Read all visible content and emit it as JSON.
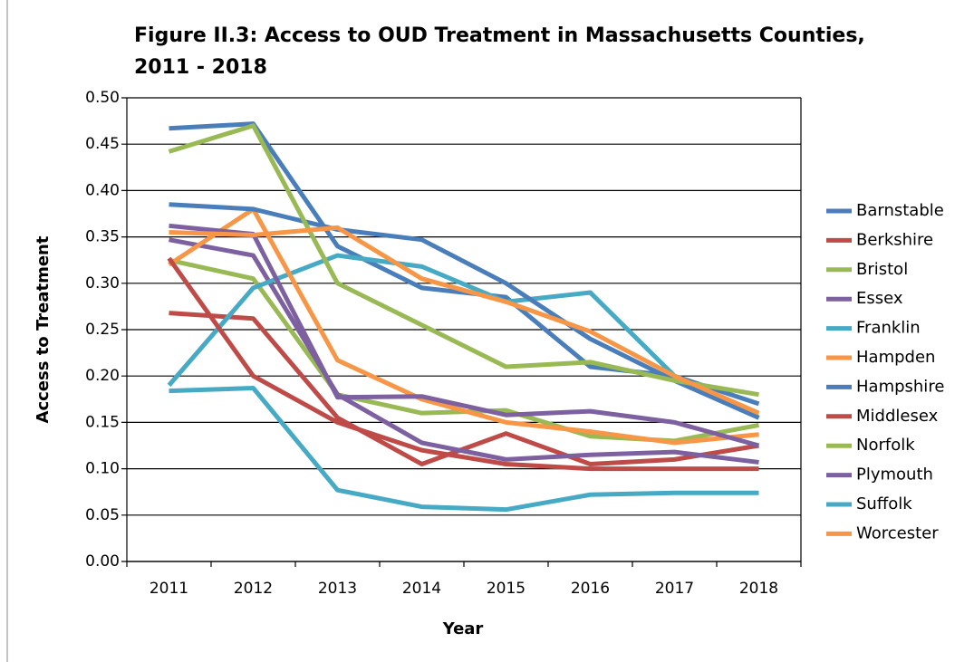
{
  "chart_data": {
    "type": "line",
    "title": [
      "Figure II.3: Access to OUD Treatment in Massachusetts Counties,",
      "2011 - 2018"
    ],
    "x_label": "Year",
    "y_label": "Access to Treatment",
    "categories": [
      "2011",
      "2012",
      "2013",
      "2014",
      "2015",
      "2016",
      "2017",
      "2018"
    ],
    "ylim": [
      0,
      0.5
    ],
    "yticks": [
      {
        "value": 0,
        "label": "0.00"
      },
      {
        "value": 0.05,
        "label": "0.05"
      },
      {
        "value": 0.1,
        "label": "0.10"
      },
      {
        "value": 0.15,
        "label": "0.15"
      },
      {
        "value": 0.2,
        "label": "0.20"
      },
      {
        "value": 0.25,
        "label": "0.25"
      },
      {
        "value": 0.3,
        "label": "0.30"
      },
      {
        "value": 0.35,
        "label": "0.35"
      },
      {
        "value": 0.4,
        "label": "0.40"
      },
      {
        "value": 0.45,
        "label": "0.45"
      },
      {
        "value": 0.5,
        "label": "0.50"
      }
    ],
    "grid": true,
    "legend": "right",
    "series": [
      {
        "name": "Barnstable",
        "color": "#4a7ebb",
        "values": [
          0.467,
          0.472,
          0.34,
          0.295,
          0.285,
          0.21,
          0.2,
          0.17
        ]
      },
      {
        "name": "Berkshire",
        "color": "#be4b48",
        "values": [
          0.268,
          0.262,
          0.155,
          0.105,
          0.138,
          0.105,
          0.11,
          0.125
        ]
      },
      {
        "name": "Bristol",
        "color": "#98b954",
        "values": [
          0.325,
          0.305,
          0.18,
          0.16,
          0.163,
          0.135,
          0.13,
          0.147
        ]
      },
      {
        "name": "Essex",
        "color": "#7d60a0",
        "values": [
          0.347,
          0.33,
          0.18,
          0.128,
          0.11,
          0.115,
          0.118,
          0.107
        ]
      },
      {
        "name": "Franklin",
        "color": "#46aac5",
        "values": [
          0.19,
          0.295,
          0.33,
          0.318,
          0.28,
          0.29,
          0.2,
          0.155
        ]
      },
      {
        "name": "Hampden",
        "color": "#f79646",
        "values": [
          0.32,
          0.38,
          0.217,
          0.175,
          0.15,
          0.14,
          0.128,
          0.137
        ]
      },
      {
        "name": "Hampshire",
        "color": "#4a7ebb",
        "values": [
          0.385,
          0.38,
          0.358,
          0.347,
          0.3,
          0.24,
          0.195,
          0.155
        ]
      },
      {
        "name": "Middlesex",
        "color": "#be4b48",
        "values": [
          0.327,
          0.2,
          0.15,
          0.12,
          0.105,
          0.1,
          0.1,
          0.1
        ]
      },
      {
        "name": "Norfolk",
        "color": "#98b954",
        "values": [
          0.442,
          0.47,
          0.3,
          0.255,
          0.21,
          0.215,
          0.195,
          0.18
        ]
      },
      {
        "name": "Plymouth",
        "color": "#7d60a0",
        "values": [
          0.362,
          0.353,
          0.177,
          0.178,
          0.158,
          0.162,
          0.15,
          0.125
        ]
      },
      {
        "name": "Suffolk",
        "color": "#46aac5",
        "values": [
          0.184,
          0.187,
          0.077,
          0.059,
          0.056,
          0.072,
          0.074,
          0.074
        ]
      },
      {
        "name": "Worcester",
        "color": "#f79646",
        "values": [
          0.355,
          0.352,
          0.36,
          0.305,
          0.28,
          0.248,
          0.2,
          0.16
        ]
      }
    ]
  }
}
